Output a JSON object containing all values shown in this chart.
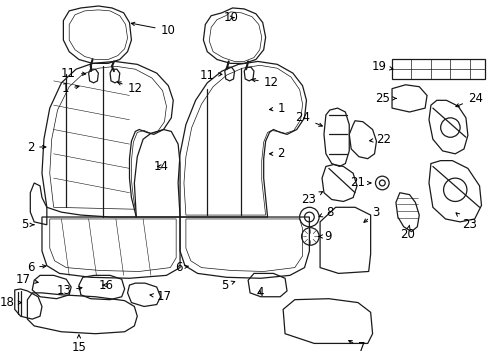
{
  "bg_color": "#ffffff",
  "line_color": "#1a1a1a",
  "label_color": "#000000",
  "fig_width": 4.89,
  "fig_height": 3.6,
  "dpi": 100,
  "font_size": 8.5,
  "lw": 0.9
}
